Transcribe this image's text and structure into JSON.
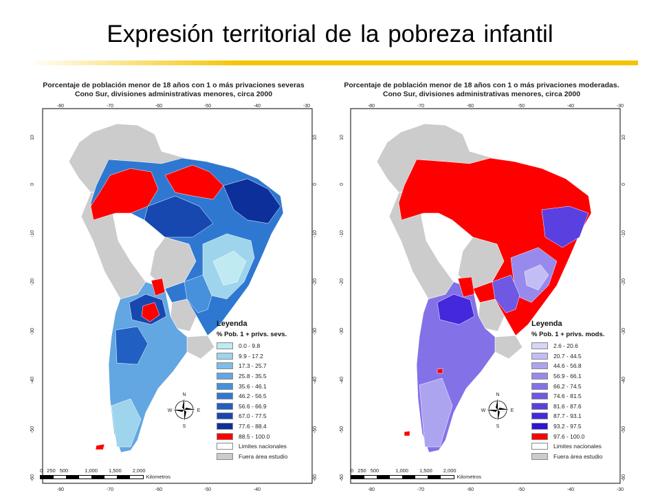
{
  "slide": {
    "title": "Expresión territorial de la pobreza infantil",
    "accent_color": "#f5c400"
  },
  "maps": [
    {
      "title_line1": "Porcentaje de población menor de 18 años con 1 o más privaciones severas",
      "title_line2": "Cono Sur, divisiones administrativas menores, circa 2000",
      "legend_title": "Leyenda",
      "legend_subtitle": "% Pob. 1 + privs. sevs.",
      "classes": [
        {
          "label": "0.0 - 9.8",
          "color": "#bfeaf2"
        },
        {
          "label": "9.9 - 17.2",
          "color": "#9ed4ec"
        },
        {
          "label": "17.3 - 25.7",
          "color": "#7fbde7"
        },
        {
          "label": "25.8 - 35.5",
          "color": "#62a6e2"
        },
        {
          "label": "35.6 - 46.1",
          "color": "#4690dc"
        },
        {
          "label": "46.2 - 56.5",
          "color": "#2f78d2"
        },
        {
          "label": "56.6 - 66.9",
          "color": "#2160c2"
        },
        {
          "label": "67.0 - 77.5",
          "color": "#1748b0"
        },
        {
          "label": "77.6 - 88.4",
          "color": "#0d2f9a"
        },
        {
          "label": "88.5 - 100.0",
          "color": "#ff0000"
        }
      ],
      "extra_legend": [
        {
          "label": "Limites nacionales",
          "color": "#ffffff"
        },
        {
          "label": "Fuera área estudio",
          "color": "#cccccc"
        }
      ]
    },
    {
      "title_line1": "Porcentaje de población menor de 18 años con 1 o más privaciones moderadas.",
      "title_line2": "Cono Sur, divisiones administrativas menores, circa 2000",
      "legend_title": "Leyenda",
      "legend_subtitle": "% Pob. 1 + privs. mods.",
      "classes": [
        {
          "label": "2.6 - 20.6",
          "color": "#d6d6f8"
        },
        {
          "label": "20.7 - 44.5",
          "color": "#c2bdf4"
        },
        {
          "label": "44.6 - 56.8",
          "color": "#ada4f0"
        },
        {
          "label": "56.9 - 66.1",
          "color": "#988aec"
        },
        {
          "label": "66.2 - 74.5",
          "color": "#8371e8"
        },
        {
          "label": "74.6 - 81.5",
          "color": "#6e58e4"
        },
        {
          "label": "81.6 - 87.6",
          "color": "#5a40e0"
        },
        {
          "label": "87.7 - 93.1",
          "color": "#4428dc"
        },
        {
          "label": "93.2 - 97.5",
          "color": "#2e14d6"
        },
        {
          "label": "97.6 - 100.0",
          "color": "#ff0000"
        }
      ],
      "extra_legend": [
        {
          "label": "Limites nacionales",
          "color": "#ffffff"
        },
        {
          "label": "Fuera área estudio",
          "color": "#cccccc"
        }
      ]
    }
  ],
  "axes": {
    "longitude_ticks": [
      "-80",
      "-70",
      "-60",
      "-50",
      "-40",
      "-30"
    ],
    "latitude_ticks": [
      "10",
      "0",
      "-10",
      "-20",
      "-30",
      "-40",
      "-50",
      "-60"
    ]
  },
  "compass": {
    "n": "N",
    "s": "S",
    "e": "E",
    "w": "W"
  },
  "scale": {
    "labels": [
      "0",
      "250",
      "500",
      "1,000",
      "1,500",
      "2,000"
    ],
    "unit": "Kilometros"
  }
}
